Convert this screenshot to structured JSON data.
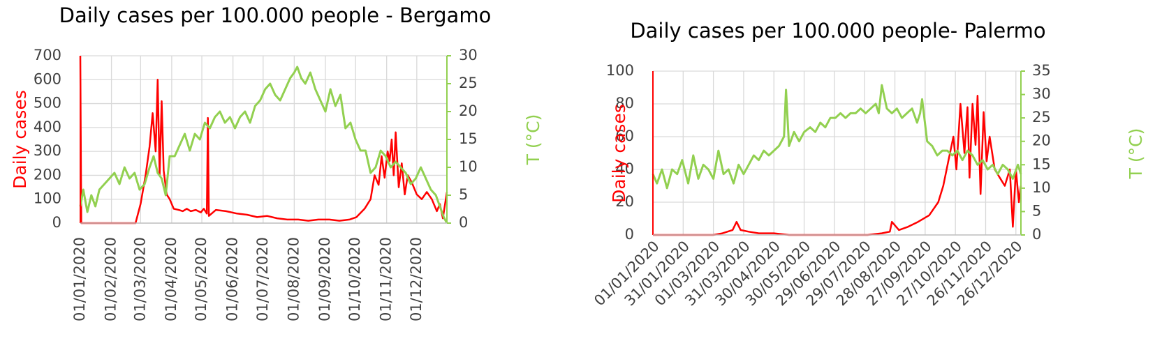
{
  "chart_data": [
    {
      "type": "line",
      "title": "Daily cases per 100.000 people - Bergamo",
      "xlabel": "",
      "ylabel": "Daily cases",
      "y2label": "T (°C)",
      "ylim": [
        0,
        700
      ],
      "y2lim": [
        0,
        30
      ],
      "yticks": [
        "0",
        "100",
        "200",
        "300",
        "400",
        "500",
        "600",
        "700"
      ],
      "y2ticks": [
        "0",
        "5",
        "10",
        "15",
        "20",
        "25",
        "30"
      ],
      "x_ticks": [
        "01/01/2020",
        "01/02/2020",
        "01/03/2020",
        "01/04/2020",
        "01/05/2020",
        "01/06/2020",
        "01/07/2020",
        "01/08/2020",
        "01/09/2020",
        "01/10/2020",
        "01/11/2020",
        "01/12/2020"
      ],
      "x_range": [
        "01/01/2020",
        "31/12/2020"
      ],
      "grid": true,
      "colors": {
        "cases": "#ff0000",
        "temp": "#92d050"
      },
      "series": [
        {
          "axis": "left",
          "color": "#ff0000",
          "x": [
            "01/01/2020",
            "02/01/2020",
            "25/02/2020",
            "01/03/2020",
            "06/03/2020",
            "10/03/2020",
            "13/03/2020",
            "16/03/2020",
            "18/03/2020",
            "20/03/2020",
            "22/03/2020",
            "24/03/2020",
            "27/03/2020",
            "30/03/2020",
            "03/04/2020",
            "08/04/2020",
            "12/04/2020",
            "16/04/2020",
            "20/04/2020",
            "25/04/2020",
            "30/04/2020",
            "03/05/2020",
            "06/05/2020",
            "07/05/2020",
            "08/05/2020",
            "15/05/2020",
            "25/05/2020",
            "05/06/2020",
            "15/06/2020",
            "25/06/2020",
            "05/07/2020",
            "15/07/2020",
            "25/07/2020",
            "05/08/2020",
            "15/08/2020",
            "25/08/2020",
            "05/09/2020",
            "15/09/2020",
            "25/09/2020",
            "02/10/2020",
            "10/10/2020",
            "16/10/2020",
            "20/10/2020",
            "24/10/2020",
            "27/10/2020",
            "30/10/2020",
            "02/11/2020",
            "04/11/2020",
            "06/11/2020",
            "08/11/2020",
            "10/11/2020",
            "13/11/2020",
            "16/11/2020",
            "19/11/2020",
            "22/11/2020",
            "26/11/2020",
            "01/12/2020",
            "06/12/2020",
            "11/12/2020",
            "16/12/2020",
            "21/12/2020",
            "24/12/2020",
            "27/12/2020",
            "31/12/2020"
          ],
          "values": [
            700,
            0,
            0,
            80,
            200,
            320,
            460,
            300,
            600,
            200,
            510,
            220,
            120,
            100,
            60,
            55,
            50,
            60,
            50,
            55,
            45,
            60,
            40,
            440,
            30,
            55,
            50,
            40,
            35,
            25,
            30,
            20,
            15,
            15,
            10,
            15,
            15,
            10,
            15,
            25,
            60,
            100,
            200,
            160,
            280,
            190,
            300,
            260,
            350,
            200,
            380,
            150,
            250,
            120,
            200,
            170,
            120,
            100,
            130,
            100,
            50,
            80,
            20,
            130
          ]
        },
        {
          "axis": "right",
          "color": "#92d050",
          "x": [
            "01/01/2020",
            "04/01/2020",
            "08/01/2020",
            "12/01/2020",
            "16/01/2020",
            "20/01/2020",
            "25/01/2020",
            "30/01/2020",
            "04/02/2020",
            "09/02/2020",
            "14/02/2020",
            "19/02/2020",
            "24/02/2020",
            "29/02/2020",
            "05/03/2020",
            "10/03/2020",
            "14/03/2020",
            "18/03/2020",
            "22/03/2020",
            "26/03/2020",
            "30/03/2020",
            "04/04/2020",
            "09/04/2020",
            "14/04/2020",
            "19/04/2020",
            "24/04/2020",
            "29/04/2020",
            "04/05/2020",
            "09/05/2020",
            "14/05/2020",
            "19/05/2020",
            "24/05/2020",
            "29/05/2020",
            "03/06/2020",
            "08/06/2020",
            "13/06/2020",
            "18/06/2020",
            "23/06/2020",
            "28/06/2020",
            "03/07/2020",
            "08/07/2020",
            "13/07/2020",
            "18/07/2020",
            "23/07/2020",
            "28/07/2020",
            "01/08/2020",
            "04/08/2020",
            "08/08/2020",
            "12/08/2020",
            "17/08/2020",
            "22/08/2020",
            "27/08/2020",
            "01/09/2020",
            "06/09/2020",
            "11/09/2020",
            "16/09/2020",
            "21/09/2020",
            "26/09/2020",
            "01/10/2020",
            "06/10/2020",
            "11/10/2020",
            "16/10/2020",
            "21/10/2020",
            "26/10/2020",
            "31/10/2020",
            "05/11/2020",
            "10/11/2020",
            "15/11/2020",
            "20/11/2020",
            "25/11/2020",
            "30/11/2020",
            "05/12/2020",
            "10/12/2020",
            "15/12/2020",
            "20/12/2020",
            "24/12/2020",
            "28/12/2020",
            "31/12/2020"
          ],
          "values": [
            3,
            6,
            2,
            5,
            3,
            6,
            7,
            8,
            9,
            7,
            10,
            8,
            9,
            6,
            7,
            10,
            12,
            9,
            8,
            5,
            12,
            12,
            14,
            16,
            13,
            16,
            15,
            18,
            17,
            19,
            20,
            18,
            19,
            17,
            19,
            20,
            18,
            21,
            22,
            24,
            25,
            23,
            22,
            24,
            26,
            27,
            28,
            26,
            25,
            27,
            24,
            22,
            20,
            24,
            21,
            23,
            17,
            18,
            15,
            13,
            13,
            9,
            10,
            13,
            12,
            10,
            11,
            10,
            9,
            7,
            8,
            10,
            8,
            6,
            5,
            3,
            1,
            0
          ]
        }
      ]
    },
    {
      "type": "line",
      "title": "Daily cases per 100.000 people- Palermo",
      "xlabel": "",
      "ylabel": "Daily cases",
      "y2label": "T (°C)",
      "ylim": [
        0,
        100
      ],
      "y2lim": [
        0,
        35
      ],
      "yticks": [
        "0",
        "20",
        "40",
        "60",
        "80",
        "100"
      ],
      "y2ticks": [
        "0",
        "5",
        "10",
        "15",
        "20",
        "25",
        "30",
        "35"
      ],
      "x_ticks": [
        "01/01/2020",
        "31/01/2020",
        "01/03/2020",
        "31/03/2020",
        "30/04/2020",
        "30/05/2020",
        "29/06/2020",
        "29/07/2020",
        "28/08/2020",
        "27/09/2020",
        "27/10/2020",
        "26/11/2020",
        "26/12/2020"
      ],
      "x_range": [
        "01/01/2020",
        "31/12/2020"
      ],
      "grid": true,
      "colors": {
        "cases": "#ff0000",
        "temp": "#92d050"
      },
      "series": [
        {
          "axis": "left",
          "color": "#ff0000",
          "x": [
            "01/01/2020",
            "01/03/2020",
            "10/03/2020",
            "20/03/2020",
            "24/03/2020",
            "28/03/2020",
            "05/04/2020",
            "15/04/2020",
            "30/04/2020",
            "15/05/2020",
            "01/06/2020",
            "01/07/2020",
            "01/08/2020",
            "15/08/2020",
            "23/08/2020",
            "25/08/2020",
            "01/09/2020",
            "10/09/2020",
            "20/09/2020",
            "01/10/2020",
            "10/10/2020",
            "15/10/2020",
            "20/10/2020",
            "25/10/2020",
            "28/10/2020",
            "01/11/2020",
            "05/11/2020",
            "08/11/2020",
            "10/11/2020",
            "13/11/2020",
            "16/11/2020",
            "18/11/2020",
            "21/11/2020",
            "24/11/2020",
            "27/11/2020",
            "30/11/2020",
            "05/12/2020",
            "10/12/2020",
            "15/12/2020",
            "20/12/2020",
            "23/12/2020",
            "26/12/2020",
            "29/12/2020",
            "31/12/2020"
          ],
          "values": [
            0,
            0,
            1,
            3,
            8,
            3,
            2,
            1,
            1,
            0,
            0,
            0,
            0,
            1,
            2,
            8,
            3,
            5,
            8,
            12,
            20,
            30,
            45,
            60,
            40,
            80,
            50,
            78,
            35,
            80,
            55,
            85,
            25,
            75,
            45,
            60,
            40,
            35,
            30,
            40,
            5,
            40,
            20,
            30
          ]
        },
        {
          "axis": "right",
          "color": "#92d050",
          "x": [
            "01/01/2020",
            "05/01/2020",
            "10/01/2020",
            "15/01/2020",
            "20/01/2020",
            "25/01/2020",
            "30/01/2020",
            "05/02/2020",
            "10/02/2020",
            "15/02/2020",
            "20/02/2020",
            "25/02/2020",
            "01/03/2020",
            "06/03/2020",
            "11/03/2020",
            "16/03/2020",
            "21/03/2020",
            "26/03/2020",
            "31/03/2020",
            "05/04/2020",
            "10/04/2020",
            "15/04/2020",
            "20/04/2020",
            "25/04/2020",
            "30/04/2020",
            "05/05/2020",
            "10/05/2020",
            "12/05/2020",
            "15/05/2020",
            "20/05/2020",
            "25/05/2020",
            "30/05/2020",
            "05/06/2020",
            "10/06/2020",
            "15/06/2020",
            "20/06/2020",
            "25/06/2020",
            "30/06/2020",
            "05/07/2020",
            "10/07/2020",
            "15/07/2020",
            "20/07/2020",
            "25/07/2020",
            "30/07/2020",
            "04/08/2020",
            "09/08/2020",
            "12/08/2020",
            "15/08/2020",
            "20/08/2020",
            "25/08/2020",
            "30/08/2020",
            "04/09/2020",
            "09/09/2020",
            "14/09/2020",
            "19/09/2020",
            "22/09/2020",
            "24/09/2020",
            "29/09/2020",
            "04/10/2020",
            "09/10/2020",
            "14/10/2020",
            "19/10/2020",
            "24/10/2020",
            "29/10/2020",
            "03/11/2020",
            "08/11/2020",
            "13/11/2020",
            "18/11/2020",
            "23/11/2020",
            "28/11/2020",
            "03/12/2020",
            "08/12/2020",
            "13/12/2020",
            "18/12/2020",
            "23/12/2020",
            "28/12/2020",
            "31/12/2020"
          ],
          "values": [
            13,
            11,
            14,
            10,
            14,
            13,
            16,
            11,
            17,
            12,
            15,
            14,
            12,
            18,
            13,
            14,
            11,
            15,
            13,
            15,
            17,
            16,
            18,
            17,
            18,
            19,
            21,
            31,
            19,
            22,
            20,
            22,
            23,
            22,
            24,
            23,
            25,
            25,
            26,
            25,
            26,
            26,
            27,
            26,
            27,
            28,
            26,
            32,
            27,
            26,
            27,
            25,
            26,
            27,
            24,
            26,
            29,
            20,
            19,
            17,
            18,
            18,
            17,
            18,
            16,
            18,
            17,
            15,
            16,
            14,
            15,
            13,
            15,
            14,
            12,
            15,
            13
          ]
        }
      ]
    }
  ]
}
